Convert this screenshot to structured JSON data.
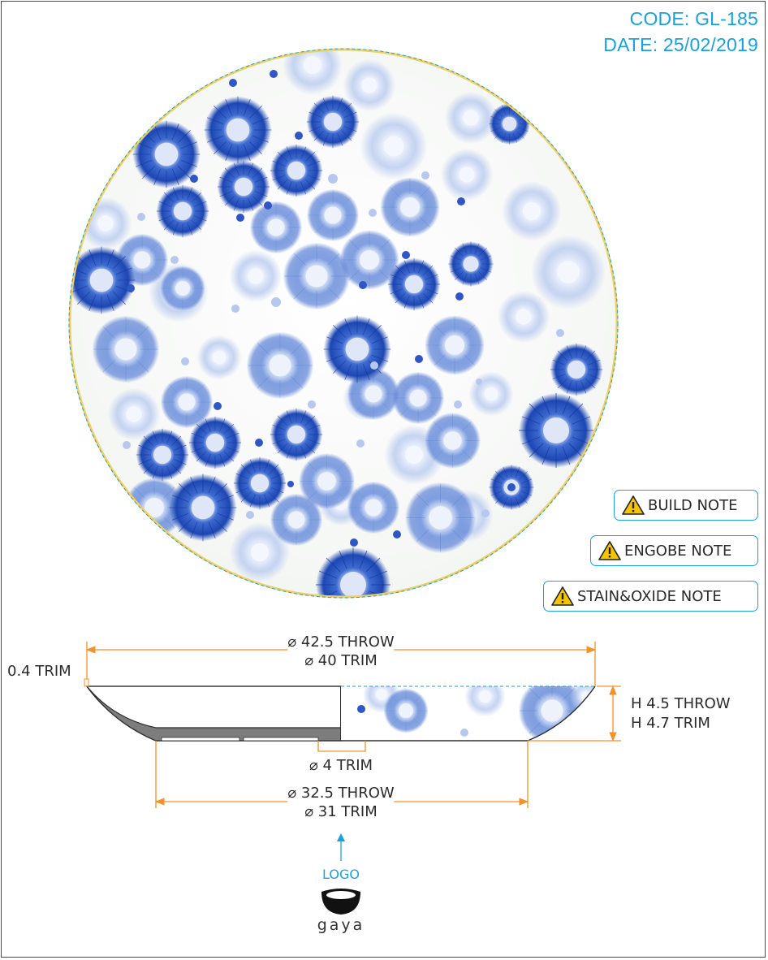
{
  "header": {
    "code": "CODE: GL-185",
    "date": "DATE: 25/02/2019"
  },
  "notes": [
    {
      "label": "BUILD NOTE",
      "icon": "warning-icon"
    },
    {
      "label": "ENGOBE NOTE",
      "icon": "warning-icon"
    },
    {
      "label": "STAIN&OXIDE NOTE",
      "icon": "warning-icon"
    }
  ],
  "dimensions": {
    "top_diameter": {
      "throw": "⌀ 42.5 THROW",
      "trim": "⌀ 40 TRIM"
    },
    "rim": "0.4 TRIM",
    "height": {
      "throw": "H 4.5 THROW",
      "trim": "H 4.7 TRIM"
    },
    "foot": "⌀ 4 TRIM",
    "base_diameter": {
      "throw": "⌀ 32.5 THROW",
      "trim": "⌀ 31 TRIM"
    }
  },
  "logo": {
    "label": "LOGO",
    "brand": "gaya"
  },
  "colors": {
    "accent": "#1aa0da",
    "dimension_line": "#f0932b",
    "pattern_dark": "#1f4fb8",
    "pattern_light": "#8fb0e6",
    "rim_gold": "#f2cf63"
  }
}
